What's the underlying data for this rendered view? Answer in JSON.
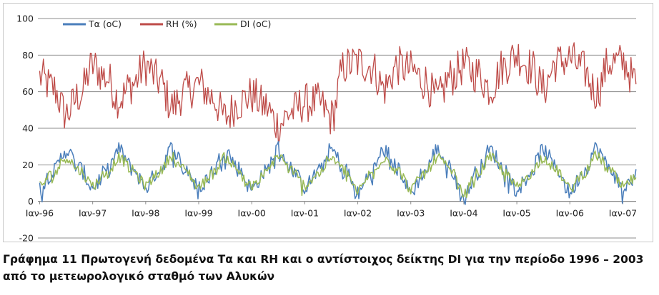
{
  "caption": "Γράφημα 11 Πρωτογενή δεδομένα Τα και RH και ο αντίστοιχος δείκτης DI για την περίοδο 1996 – 2003 από το μετεωρολογικό σταθμό των Αλυκών",
  "colors": {
    "ta": "#4a7ebb",
    "rh": "#be4b48",
    "di": "#98b954",
    "gridline": "#8c8c8c",
    "axis": "#8c8c8c"
  },
  "chart_data": {
    "type": "line",
    "title": "",
    "xlabel": "",
    "ylabel": "",
    "ylim": [
      -20,
      100
    ],
    "yticks": [
      -20,
      0,
      20,
      40,
      60,
      80,
      100
    ],
    "grid": "horizontal",
    "legend": "top-left",
    "x_tick_labels": [
      "Ιαν-96",
      "Ιαν-97",
      "Ιαν-98",
      "Ιαν-99",
      "Ιαν-00",
      "Ιαν-01",
      "Ιαν-02",
      "Ιαν-03",
      "Ιαν-04",
      "Ιαν-05",
      "Ιαν-06",
      "Ιαν-07"
    ],
    "x_range": [
      "1996-01",
      "2007-04"
    ],
    "series": [
      {
        "name": "Τα (oC)",
        "color": "#4a7ebb",
        "x": [
          "1996-01",
          "1996-04",
          "1996-07",
          "1996-10",
          "1997-01",
          "1997-04",
          "1997-07",
          "1997-10",
          "1998-01",
          "1998-04",
          "1998-07",
          "1998-10",
          "1999-01",
          "1999-04",
          "1999-07",
          "1999-10",
          "2000-01",
          "2000-04",
          "2000-07",
          "2000-10",
          "2001-01",
          "2001-04",
          "2001-07",
          "2001-10",
          "2002-01",
          "2002-04",
          "2002-07",
          "2002-10",
          "2003-01",
          "2003-04",
          "2003-07",
          "2003-10",
          "2004-01",
          "2004-04",
          "2004-07",
          "2004-10",
          "2005-01",
          "2005-04",
          "2005-07",
          "2005-10",
          "2006-01",
          "2006-04",
          "2006-07",
          "2006-10",
          "2007-01",
          "2007-04"
        ],
        "values": [
          8,
          16,
          28,
          18,
          8,
          16,
          28,
          18,
          8,
          17,
          29,
          18,
          7,
          16,
          28,
          18,
          7,
          16,
          29,
          18,
          8,
          16,
          28,
          18,
          4,
          16,
          28,
          18,
          5,
          16,
          28,
          18,
          2,
          16,
          28,
          18,
          7,
          16,
          28,
          18,
          5,
          16,
          29,
          18,
          7,
          14
        ]
      },
      {
        "name": "RH (%)",
        "color": "#be4b48",
        "x": [
          "1996-01",
          "1996-04",
          "1996-07",
          "1996-10",
          "1997-01",
          "1997-04",
          "1997-07",
          "1997-10",
          "1998-01",
          "1998-04",
          "1998-07",
          "1998-10",
          "1999-01",
          "1999-04",
          "1999-07",
          "1999-10",
          "2000-01",
          "2000-04",
          "2000-07",
          "2000-10",
          "2001-01",
          "2001-04",
          "2001-07",
          "2001-10",
          "2002-01",
          "2002-04",
          "2002-07",
          "2002-10",
          "2003-01",
          "2003-04",
          "2003-07",
          "2003-10",
          "2004-01",
          "2004-04",
          "2004-07",
          "2004-10",
          "2005-01",
          "2005-04",
          "2005-07",
          "2005-10",
          "2006-01",
          "2006-04",
          "2006-07",
          "2006-10",
          "2007-01",
          "2007-04"
        ],
        "values": [
          68,
          62,
          48,
          58,
          74,
          68,
          56,
          64,
          74,
          66,
          52,
          60,
          64,
          57,
          46,
          54,
          58,
          52,
          42,
          49,
          54,
          54,
          46,
          74,
          76,
          74,
          62,
          74,
          72,
          66,
          56,
          68,
          74,
          70,
          62,
          74,
          80,
          74,
          62,
          76,
          78,
          72,
          60,
          76,
          76,
          65
        ]
      },
      {
        "name": "DI (oC)",
        "color": "#98b954",
        "x": [
          "1996-01",
          "1996-04",
          "1996-07",
          "1996-10",
          "1997-01",
          "1997-04",
          "1997-07",
          "1997-10",
          "1998-01",
          "1998-04",
          "1998-07",
          "1998-10",
          "1999-01",
          "1999-04",
          "1999-07",
          "1999-10",
          "2000-01",
          "2000-04",
          "2000-07",
          "2000-10",
          "2001-01",
          "2001-04",
          "2001-07",
          "2001-10",
          "2002-01",
          "2002-04",
          "2002-07",
          "2002-10",
          "2003-01",
          "2003-04",
          "2003-07",
          "2003-10",
          "2004-01",
          "2004-04",
          "2004-07",
          "2004-10",
          "2005-01",
          "2005-04",
          "2005-07",
          "2005-10",
          "2006-01",
          "2006-04",
          "2006-07",
          "2006-10",
          "2007-01",
          "2007-04"
        ],
        "values": [
          9,
          15,
          24,
          17,
          9,
          15,
          24,
          17,
          9,
          16,
          25,
          17,
          8,
          15,
          24,
          17,
          8,
          15,
          25,
          17,
          9,
          15,
          24,
          17,
          6,
          15,
          24,
          17,
          7,
          15,
          24,
          17,
          4,
          15,
          24,
          17,
          8,
          15,
          24,
          17,
          7,
          15,
          25,
          17,
          8,
          13
        ]
      }
    ]
  }
}
